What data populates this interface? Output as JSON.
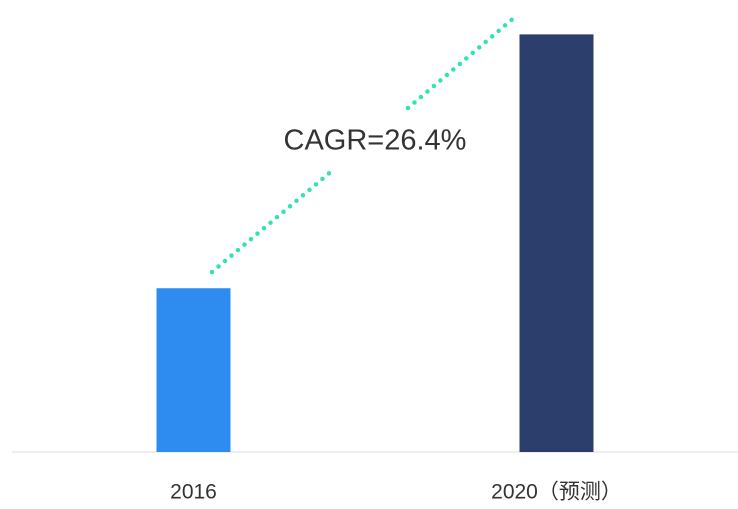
{
  "chart_data": {
    "type": "bar",
    "categories": [
      "2016",
      "2020（预测）"
    ],
    "values": [
      1,
      2.55
    ],
    "colors": [
      "#2e8bef",
      "#2c3e6b"
    ],
    "ylim": [
      0,
      2.76
    ],
    "annotation": "CAGR=26.4%"
  }
}
